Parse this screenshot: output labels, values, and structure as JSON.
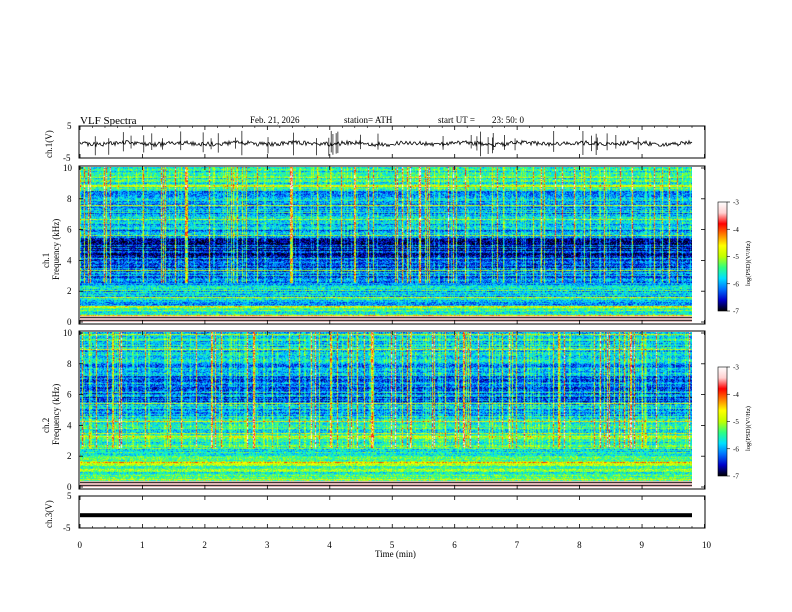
{
  "header": {
    "title": "VLF Spectra",
    "date": "Feb. 21, 2026",
    "station": "station= ATH",
    "start": "start UT =",
    "start_time": "23: 50: 0"
  },
  "colors": {
    "waveform": "#000000",
    "frame": "#000000",
    "colormap": [
      "#000000",
      "#0000c8",
      "#0070ff",
      "#00e0ff",
      "#30ff80",
      "#c0ff00",
      "#ffff00",
      "#ff8000",
      "#ff0000",
      "#ffd0d0",
      "#ffffff"
    ]
  },
  "chart_data": [
    {
      "type": "line",
      "name": "ch1-waveform",
      "ylabel": "ch.1(V)",
      "yticks": [
        "5",
        "-5"
      ],
      "ylim": [
        -5,
        5
      ],
      "xlim": [
        0,
        10
      ],
      "mean_value": -0.5,
      "data_end_min": 9.8
    },
    {
      "type": "heatmap",
      "name": "ch1-spectrogram",
      "ylabel_channel": "ch.1",
      "ylabel": "Frequency (kHz)",
      "yticks": [
        "0",
        "2",
        "4",
        "6",
        "8",
        "10"
      ],
      "ylim": [
        0,
        10
      ],
      "xlim": [
        0,
        10
      ],
      "data_end_min": 9.8,
      "colorbar": {
        "label": "log(PSD)(V²/Hz)",
        "ticks": [
          "-3",
          "-4",
          "-5",
          "-6",
          "-7"
        ],
        "range": [
          -7,
          -3
        ]
      }
    },
    {
      "type": "heatmap",
      "name": "ch2-spectrogram",
      "ylabel_channel": "ch.2",
      "ylabel": "Frequency (kHz)",
      "yticks": [
        "0",
        "2",
        "4",
        "6",
        "8",
        "10"
      ],
      "ylim": [
        0,
        10
      ],
      "xlim": [
        0,
        10
      ],
      "data_end_min": 9.8,
      "colorbar": {
        "label": "log(PSD)(V²/Hz)",
        "ticks": [
          "-3",
          "-4",
          "-5",
          "-6",
          "-7"
        ],
        "range": [
          -7,
          -3
        ]
      }
    },
    {
      "type": "line",
      "name": "ch3-waveform",
      "ylabel": "ch.3(V)",
      "yticks": [
        "5",
        "-5"
      ],
      "ylim": [
        -5,
        5
      ],
      "xlim": [
        0,
        10
      ],
      "mean_value": -1.0,
      "data_end_min": 9.8
    }
  ],
  "xaxis": {
    "label": "Time (min)",
    "ticks": [
      "0",
      "1",
      "2",
      "3",
      "4",
      "5",
      "6",
      "7",
      "8",
      "9",
      "10"
    ]
  }
}
